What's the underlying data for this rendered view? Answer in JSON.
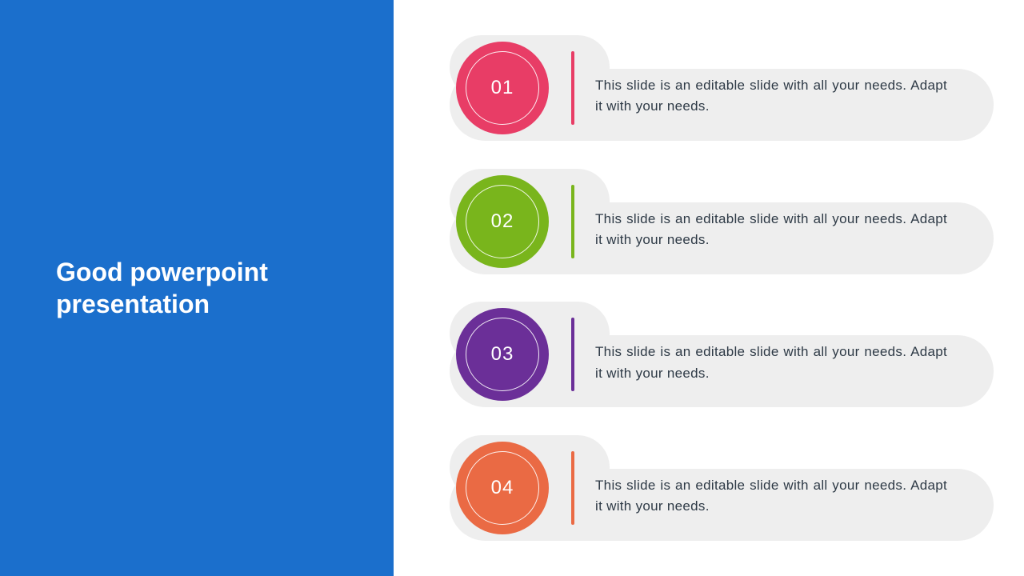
{
  "layout": {
    "slide_width": 1280,
    "slide_height": 720,
    "left_panel_width": 492,
    "left_panel_color": "#1b6fcc",
    "item_bg": "#eeeeee",
    "text_color": "#2e3a46",
    "title_color": "#ffffff",
    "title_fontsize": 32,
    "item_fontsize": 17,
    "circle_number_fontsize": 24
  },
  "title": "Good powerpoint presentation",
  "items": [
    {
      "num": "01",
      "color": "#e83d66",
      "text": "This slide is an editable slide with all your needs. Adapt it with your needs."
    },
    {
      "num": "02",
      "color": "#79b51c",
      "text": "This slide is an editable slide with all your needs. Adapt it with your needs."
    },
    {
      "num": "03",
      "color": "#6b2f98",
      "text": "This slide is an editable slide with all your needs. Adapt it with your needs."
    },
    {
      "num": "04",
      "color": "#ea6a44",
      "text": "This slide is an editable slide with all your needs. Adapt it with your needs."
    }
  ]
}
